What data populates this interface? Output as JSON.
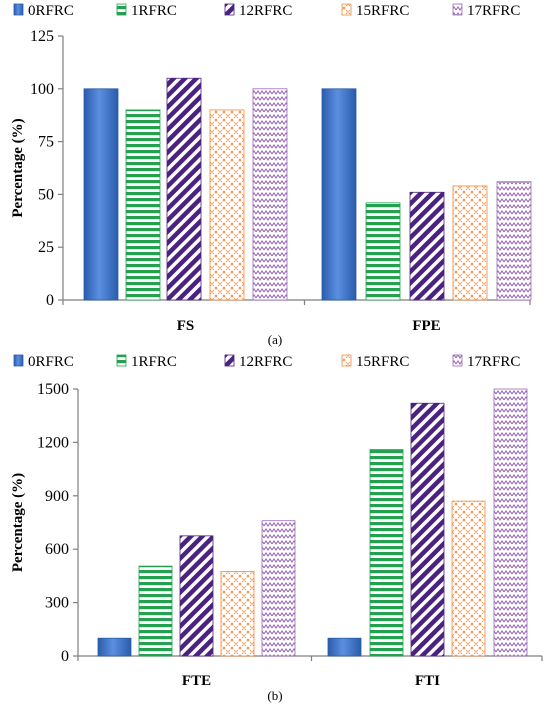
{
  "colors": {
    "0RFRC": "#3a6fc8",
    "1RFRC": "#23a050",
    "12RFRC": "#5a2a8a",
    "15RFRC": "#f08a3c",
    "17RFRC": "#9a6ab8"
  },
  "chart_data": [
    {
      "type": "bar",
      "panel_label": "(a)",
      "ylabel": "Percentage (%)",
      "categories": [
        "FS",
        "FPE"
      ],
      "ylim": [
        0,
        125
      ],
      "yticks": [
        "0",
        "25",
        "50",
        "75",
        "100",
        "125"
      ],
      "legend_position": "top",
      "series": [
        {
          "name": "0RFRC",
          "values": [
            100,
            100
          ]
        },
        {
          "name": "1RFRC",
          "values": [
            90,
            46
          ]
        },
        {
          "name": "12RFRC",
          "values": [
            105,
            51
          ]
        },
        {
          "name": "15RFRC",
          "values": [
            90,
            54
          ]
        },
        {
          "name": "17RFRC",
          "values": [
            100,
            56
          ]
        }
      ]
    },
    {
      "type": "bar",
      "panel_label": "(b)",
      "ylabel": "Percentage (%)",
      "categories": [
        "FTE",
        "FTI"
      ],
      "ylim": [
        0,
        1500
      ],
      "yticks": [
        "0",
        "300",
        "600",
        "900",
        "1200",
        "1500"
      ],
      "legend_position": "top",
      "series": [
        {
          "name": "0RFRC",
          "values": [
            100,
            100
          ]
        },
        {
          "name": "1RFRC",
          "values": [
            505,
            1160
          ]
        },
        {
          "name": "12RFRC",
          "values": [
            675,
            1420
          ]
        },
        {
          "name": "15RFRC",
          "values": [
            475,
            870
          ]
        },
        {
          "name": "17RFRC",
          "values": [
            760,
            1500
          ]
        }
      ]
    }
  ]
}
